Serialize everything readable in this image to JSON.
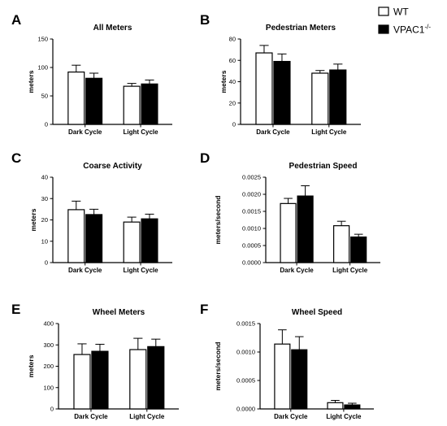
{
  "legend": {
    "entries": [
      {
        "name": "WT",
        "fill": "#ffffff"
      },
      {
        "name": "VPAC1",
        "sup": "-/-",
        "fill": "#000000"
      }
    ]
  },
  "chart_data": [
    {
      "type": "bar",
      "panel": "A",
      "title": "All Meters",
      "ylabel": "meters",
      "categories": [
        "Dark Cycle",
        "Light Cycle"
      ],
      "ylim": [
        0,
        150
      ],
      "yticks": [
        "0",
        "50",
        "100",
        "150"
      ],
      "series": [
        {
          "name": "WT",
          "values": [
            92,
            67
          ],
          "errors": [
            12,
            5
          ]
        },
        {
          "name": "VPAC1-/-",
          "values": [
            81,
            71
          ],
          "errors": [
            9,
            7
          ]
        }
      ]
    },
    {
      "type": "bar",
      "panel": "B",
      "title": "Pedestrian Meters",
      "ylabel": "meters",
      "categories": [
        "Dark Cycle",
        "Light Cycle"
      ],
      "ylim": [
        0,
        80
      ],
      "yticks": [
        "0",
        "20",
        "40",
        "60",
        "80"
      ],
      "series": [
        {
          "name": "WT",
          "values": [
            67,
            48
          ],
          "errors": [
            7,
            2.5
          ]
        },
        {
          "name": "VPAC1-/-",
          "values": [
            59,
            51
          ],
          "errors": [
            7,
            5.5
          ]
        }
      ]
    },
    {
      "type": "bar",
      "panel": "C",
      "title": "Coarse Activity",
      "ylabel": "meters",
      "categories": [
        "Dark Cycle",
        "Light Cycle"
      ],
      "ylim": [
        0,
        40
      ],
      "yticks": [
        "0",
        "10",
        "20",
        "30",
        "40"
      ],
      "series": [
        {
          "name": "WT",
          "values": [
            24.8,
            19
          ],
          "errors": [
            4,
            2.3
          ]
        },
        {
          "name": "VPAC1-/-",
          "values": [
            22.5,
            20.5
          ],
          "errors": [
            2.5,
            2.2
          ]
        }
      ]
    },
    {
      "type": "bar",
      "panel": "D",
      "title": "Pedestrian Speed",
      "ylabel": "meters/second",
      "categories": [
        "Dark Cycle",
        "Light Cycle"
      ],
      "ylim": [
        0,
        0.0025
      ],
      "yticks": [
        "0.0000",
        "0.0005",
        "0.0010",
        "0.0015",
        "0.0020",
        "0.0025"
      ],
      "series": [
        {
          "name": "WT",
          "values": [
            0.00173,
            0.00108
          ],
          "errors": [
            0.00015,
            0.00013
          ]
        },
        {
          "name": "VPAC1-/-",
          "values": [
            0.00195,
            0.00075
          ],
          "errors": [
            0.0003,
            8e-05
          ]
        }
      ]
    },
    {
      "type": "bar",
      "panel": "E",
      "title": "Wheel Meters",
      "ylabel": "meters",
      "categories": [
        "Dark Cycle",
        "Light Cycle"
      ],
      "ylim": [
        0,
        400
      ],
      "yticks": [
        "0",
        "100",
        "200",
        "300",
        "400"
      ],
      "series": [
        {
          "name": "WT",
          "values": [
            255,
            278
          ],
          "errors": [
            50,
            53
          ]
        },
        {
          "name": "VPAC1-/-",
          "values": [
            270,
            292
          ],
          "errors": [
            33,
            35
          ]
        }
      ]
    },
    {
      "type": "bar",
      "panel": "F",
      "title": "Wheel Speed",
      "ylabel": "meters/second",
      "categories": [
        "Dark Cycle",
        "Light Cycle"
      ],
      "ylim": [
        0,
        0.0015
      ],
      "yticks": [
        "0.0000",
        "0.0005",
        "0.0010",
        "0.0015"
      ],
      "series": [
        {
          "name": "WT",
          "values": [
            0.00114,
            0.00011
          ],
          "errors": [
            0.00025,
            4e-05
          ]
        },
        {
          "name": "VPAC1-/-",
          "values": [
            0.00104,
            7e-05
          ],
          "errors": [
            0.00023,
            3e-05
          ]
        }
      ]
    }
  ]
}
